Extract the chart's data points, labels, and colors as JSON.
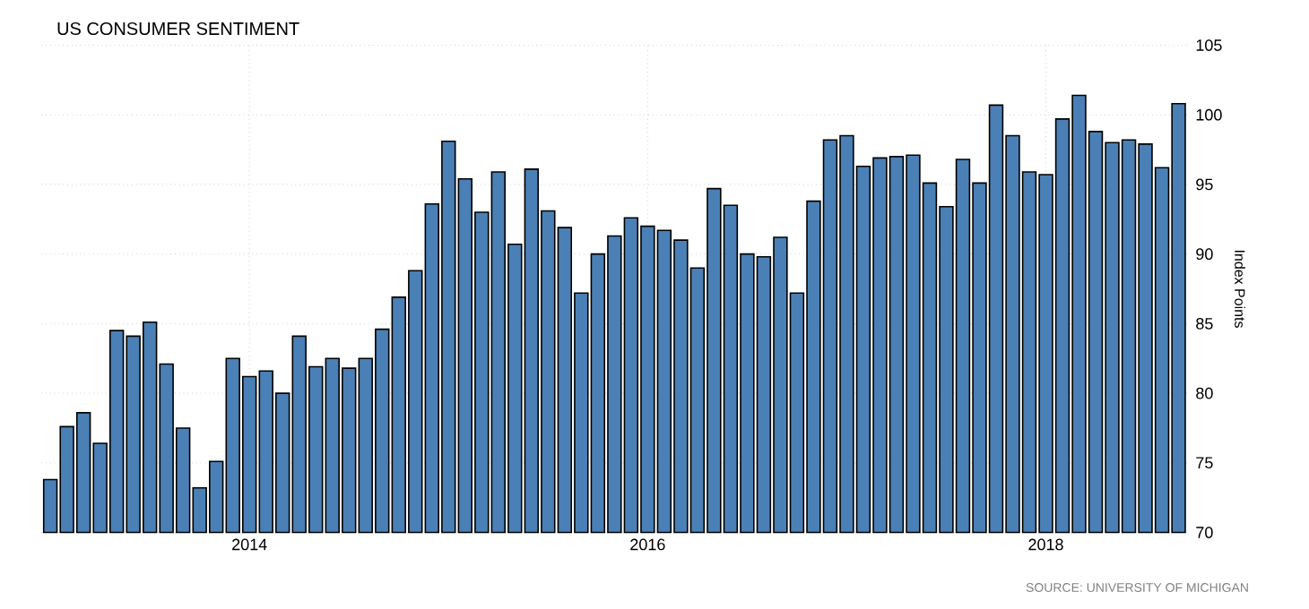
{
  "chart_data": {
    "type": "bar",
    "title": "US CONSUMER SENTIMENT",
    "ylabel": "Index Points",
    "annotations": [
      "SOURCE: UNIVERSITY OF MICHIGAN"
    ],
    "x": [
      "2013-01",
      "2013-02",
      "2013-03",
      "2013-04",
      "2013-05",
      "2013-06",
      "2013-07",
      "2013-08",
      "2013-09",
      "2013-10",
      "2013-11",
      "2013-12",
      "2014-01",
      "2014-02",
      "2014-03",
      "2014-04",
      "2014-05",
      "2014-06",
      "2014-07",
      "2014-08",
      "2014-09",
      "2014-10",
      "2014-11",
      "2014-12",
      "2015-01",
      "2015-02",
      "2015-03",
      "2015-04",
      "2015-05",
      "2015-06",
      "2015-07",
      "2015-08",
      "2015-09",
      "2015-10",
      "2015-11",
      "2015-12",
      "2016-01",
      "2016-02",
      "2016-03",
      "2016-04",
      "2016-05",
      "2016-06",
      "2016-07",
      "2016-08",
      "2016-09",
      "2016-10",
      "2016-11",
      "2016-12",
      "2017-01",
      "2017-02",
      "2017-03",
      "2017-04",
      "2017-05",
      "2017-06",
      "2017-07",
      "2017-08",
      "2017-09",
      "2017-10",
      "2017-11",
      "2017-12",
      "2018-01",
      "2018-02",
      "2018-03",
      "2018-04",
      "2018-05",
      "2018-06",
      "2018-07",
      "2018-08",
      "2018-09"
    ],
    "values": [
      73.8,
      77.6,
      78.6,
      76.4,
      84.5,
      84.1,
      85.1,
      82.1,
      77.5,
      73.2,
      75.1,
      82.5,
      81.2,
      81.6,
      80.0,
      84.1,
      81.9,
      82.5,
      81.8,
      82.5,
      84.6,
      86.9,
      88.8,
      93.6,
      98.1,
      95.4,
      93.0,
      95.9,
      90.7,
      96.1,
      93.1,
      91.9,
      87.2,
      90.0,
      91.3,
      92.6,
      92.0,
      91.7,
      91.0,
      89.0,
      94.7,
      93.5,
      90.0,
      89.8,
      91.2,
      87.2,
      93.8,
      98.2,
      98.5,
      96.3,
      96.9,
      97.0,
      97.1,
      95.1,
      93.4,
      96.8,
      95.1,
      100.7,
      98.5,
      95.9,
      95.7,
      99.7,
      101.4,
      98.8,
      98.0,
      98.2,
      97.9,
      96.2,
      100.8
    ],
    "color": "#4a80b5",
    "xlim": [
      "2012-12-15",
      "2018-09-20"
    ],
    "xticks": [
      {
        "value": "2014-01",
        "label": "2014"
      },
      {
        "value": "2016-01",
        "label": "2016"
      },
      {
        "value": "2018-01",
        "label": "2018"
      }
    ],
    "ylim": [
      70,
      105
    ],
    "yticks": [
      70,
      75,
      80,
      85,
      90,
      95,
      100,
      105
    ],
    "grid": true
  }
}
